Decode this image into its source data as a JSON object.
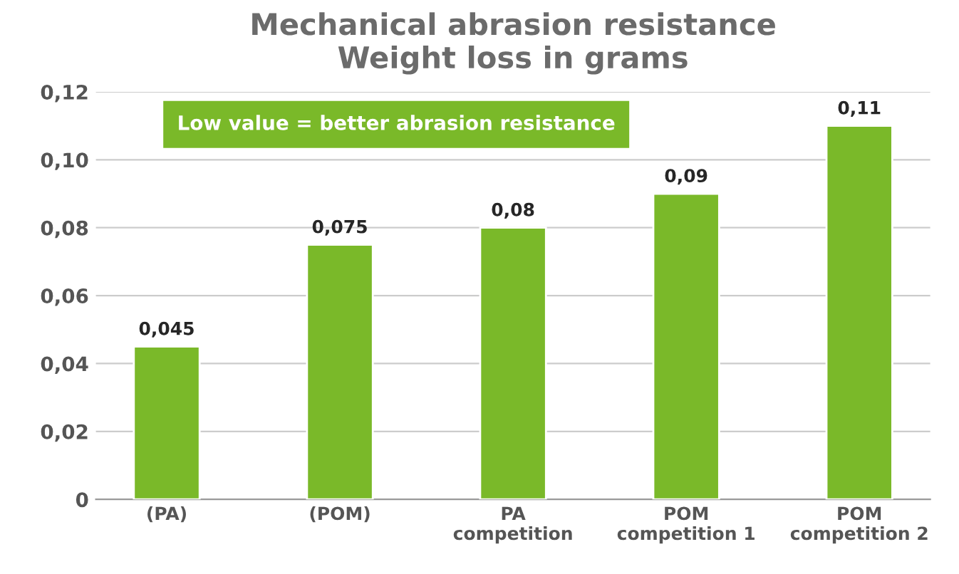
{
  "chart_data": {
    "type": "bar",
    "title": "Mechanical abrasion resistance\nWeight loss in grams",
    "categories": [
      "(PA)",
      "(POM)",
      "PA\ncompetition",
      "POM\ncompetition 1",
      "POM\ncompetition 2"
    ],
    "values": [
      0.045,
      0.075,
      0.08,
      0.09,
      0.11
    ],
    "value_labels": [
      "0,045",
      "0,075",
      "0,08",
      "0,09",
      "0,11"
    ],
    "color": "#7ab929",
    "ylim": [
      0,
      0.12
    ],
    "yticks": [
      0,
      {
        "value": 0.02,
        "label": "0,02"
      },
      {
        "value": 0.04,
        "label": "0,04"
      },
      {
        "value": 0.06,
        "label": "0,06"
      },
      {
        "value": 0.08,
        "label": "0,08"
      },
      {
        "value": 0.1,
        "label": "0,10"
      },
      {
        "value": 0.12,
        "label": "0,12"
      }
    ],
    "grid": "y",
    "annotations": [
      "Low value = better abrasion resistance"
    ]
  }
}
